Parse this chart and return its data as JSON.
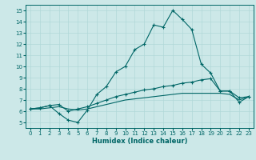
{
  "title": "",
  "xlabel": "Humidex (Indice chaleur)",
  "ylabel": "",
  "xlim": [
    -0.5,
    23.5
  ],
  "ylim": [
    4.5,
    15.5
  ],
  "xticks": [
    0,
    1,
    2,
    3,
    4,
    5,
    6,
    7,
    8,
    9,
    10,
    11,
    12,
    13,
    14,
    15,
    16,
    17,
    18,
    19,
    20,
    21,
    22,
    23
  ],
  "yticks": [
    5,
    6,
    7,
    8,
    9,
    10,
    11,
    12,
    13,
    14,
    15
  ],
  "bg_color": "#cce8e8",
  "grid_color": "#b0d8d8",
  "line_color": "#006666",
  "lines": [
    {
      "x": [
        0,
        1,
        2,
        3,
        4,
        5,
        6,
        7,
        8,
        9,
        10,
        11,
        12,
        13,
        14,
        15,
        16,
        17,
        18,
        19,
        20,
        21,
        22,
        23
      ],
      "y": [
        6.2,
        6.3,
        6.5,
        5.8,
        5.2,
        5.0,
        6.1,
        7.5,
        8.2,
        9.5,
        10.0,
        11.5,
        12.0,
        13.7,
        13.5,
        15.0,
        14.2,
        13.3,
        10.2,
        9.4,
        7.8,
        7.8,
        6.8,
        7.3
      ],
      "marker": true
    },
    {
      "x": [
        0,
        1,
        2,
        3,
        4,
        5,
        6,
        7,
        8,
        9,
        10,
        11,
        12,
        13,
        14,
        15,
        16,
        17,
        18,
        19,
        20,
        21,
        22,
        23
      ],
      "y": [
        6.2,
        6.3,
        6.5,
        6.6,
        6.0,
        6.2,
        6.4,
        6.7,
        7.0,
        7.3,
        7.5,
        7.7,
        7.9,
        8.0,
        8.2,
        8.3,
        8.5,
        8.6,
        8.8,
        8.9,
        7.8,
        7.8,
        7.2,
        7.3
      ],
      "marker": true
    },
    {
      "x": [
        0,
        1,
        2,
        3,
        4,
        5,
        6,
        7,
        8,
        9,
        10,
        11,
        12,
        13,
        14,
        15,
        16,
        17,
        18,
        19,
        20,
        21,
        22,
        23
      ],
      "y": [
        6.2,
        6.2,
        6.3,
        6.4,
        6.2,
        6.1,
        6.2,
        6.4,
        6.6,
        6.8,
        7.0,
        7.1,
        7.2,
        7.3,
        7.4,
        7.5,
        7.6,
        7.6,
        7.6,
        7.6,
        7.6,
        7.5,
        7.0,
        7.3
      ],
      "marker": false
    }
  ]
}
